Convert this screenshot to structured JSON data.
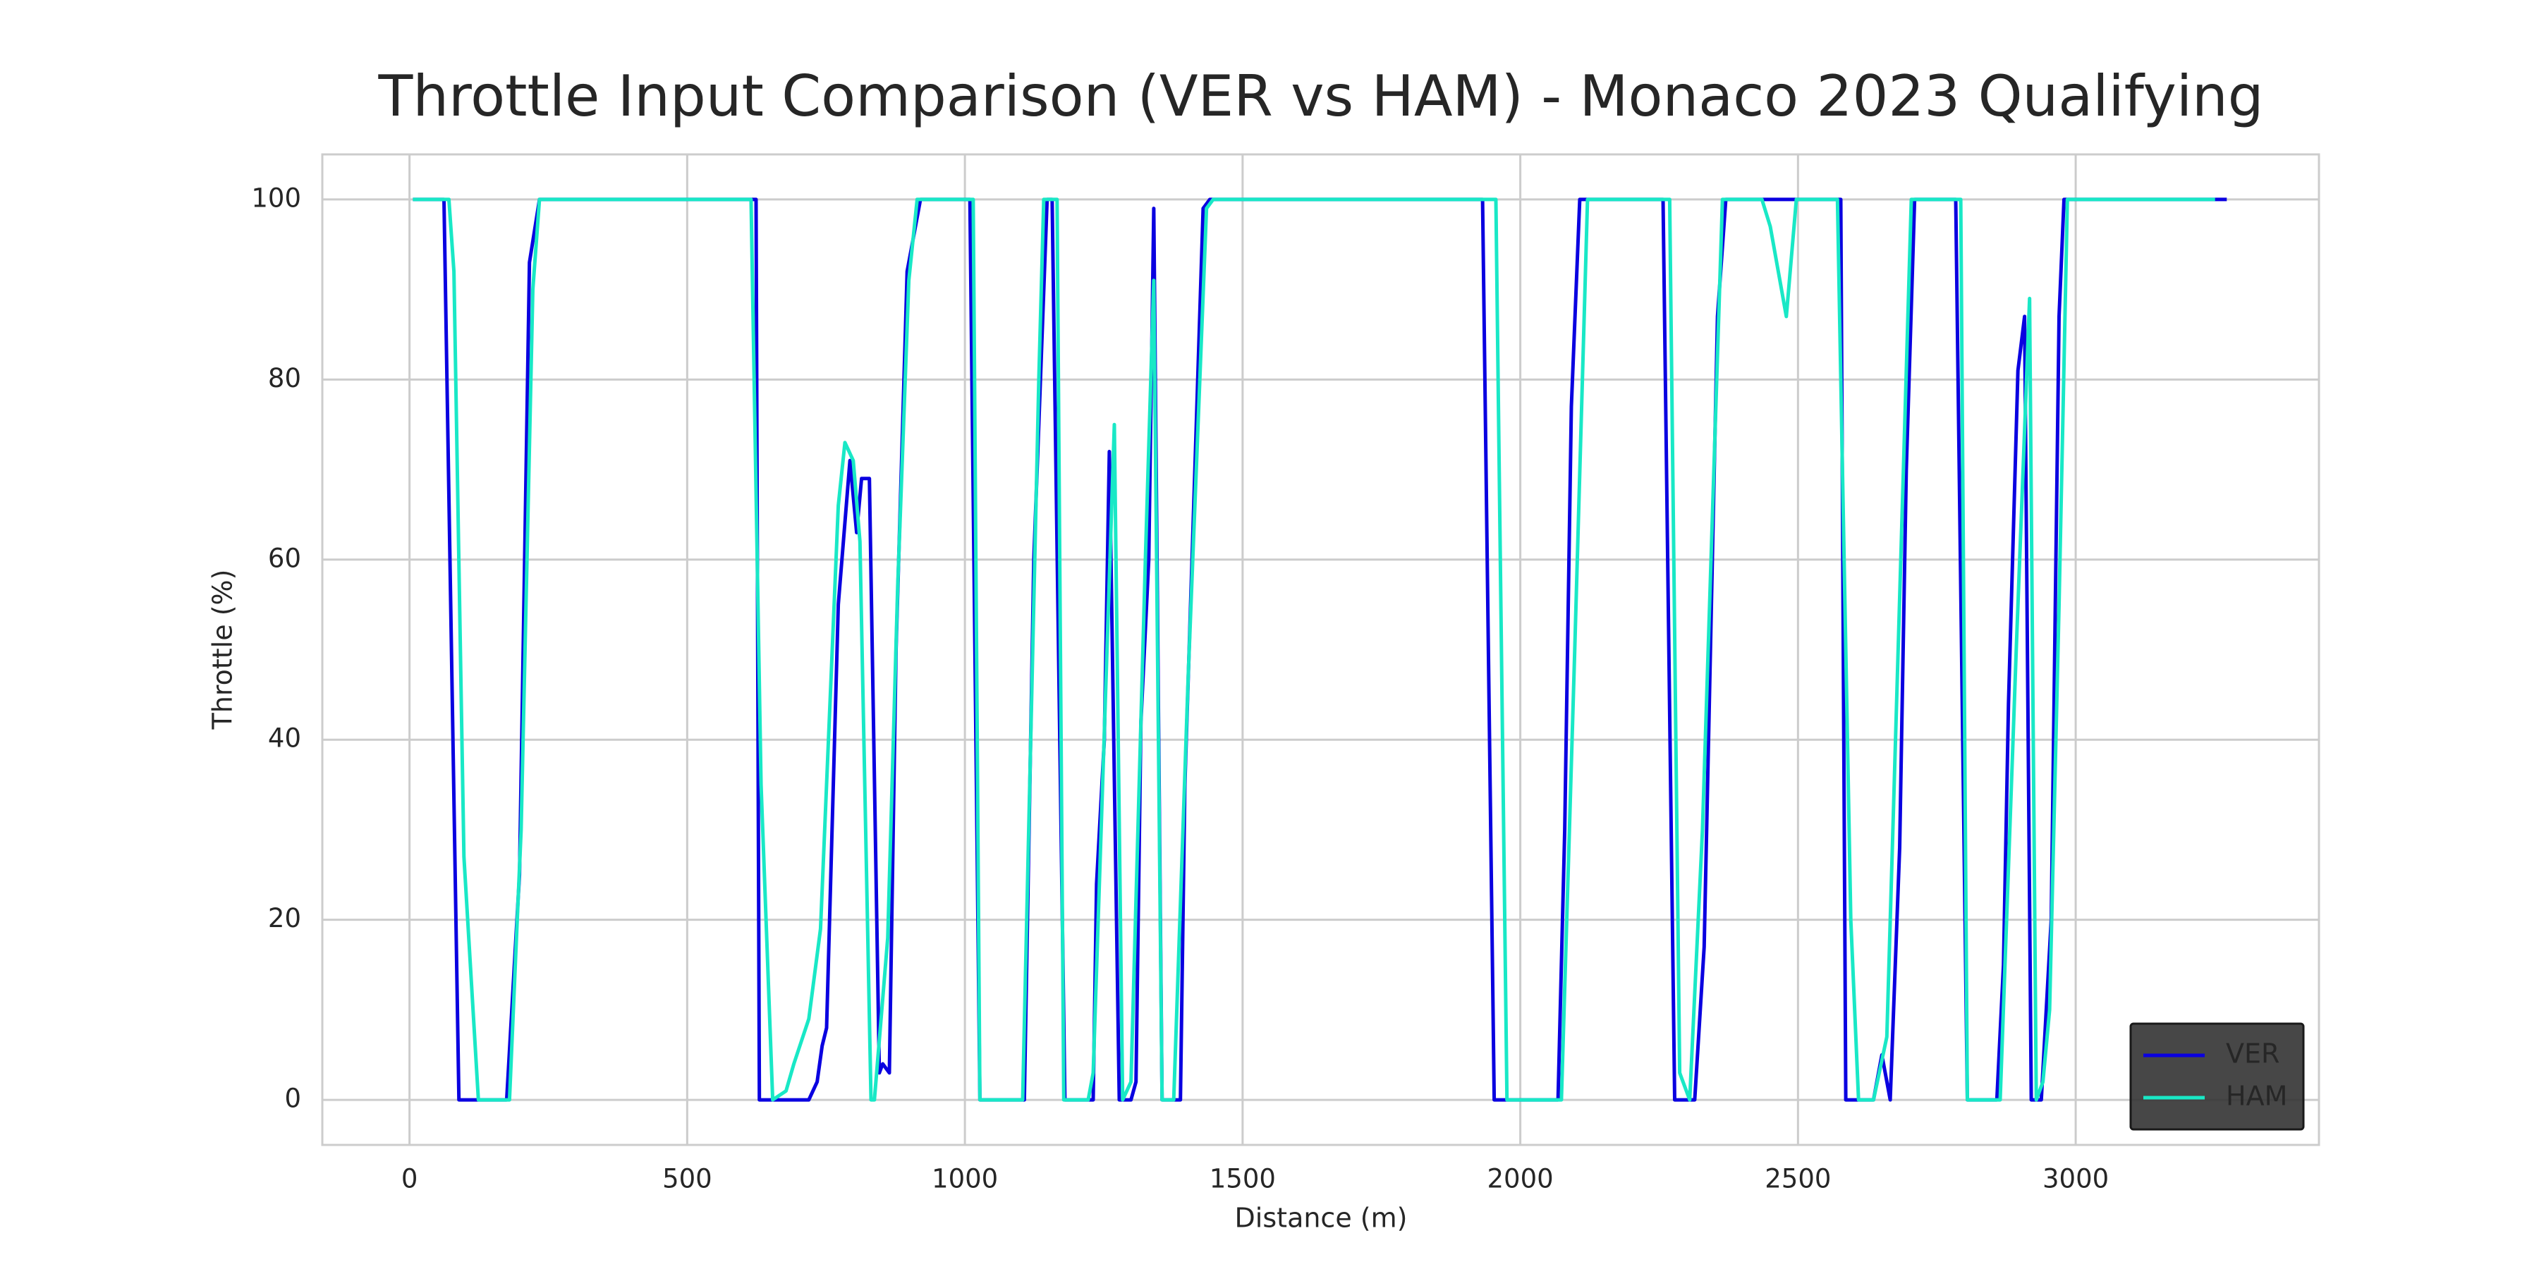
{
  "chart_data": {
    "type": "line",
    "title": "Throttle Input Comparison (VER vs HAM) - Monaco 2023 Qualifying",
    "xlabel": "Distance (m)",
    "ylabel": "Throttle (%)",
    "xlim": [
      -157,
      3438
    ],
    "ylim": [
      -5,
      105
    ],
    "xticks": [
      0,
      500,
      1000,
      1500,
      2000,
      2500,
      3000
    ],
    "yticks": [
      0,
      20,
      40,
      60,
      80,
      100
    ],
    "grid": true,
    "legend": "lower right",
    "series": [
      {
        "name": "VER",
        "color": "#0a00e0",
        "x": [
          6,
          62,
          89,
          175,
          198,
          216,
          234,
          624,
          630,
          648,
          719,
          734,
          743,
          751,
          772,
          793,
          805,
          814,
          828,
          846,
          852,
          864,
          876,
          896,
          920,
          1009,
          1027,
          1107,
          1124,
          1148,
          1157,
          1180,
          1231,
          1237,
          1251,
          1260,
          1278,
          1299,
          1308,
          1317,
          1331,
          1340,
          1355,
          1388,
          1396,
          1429,
          1441,
          1932,
          1953,
          2068,
          2080,
          2092,
          2107,
          2257,
          2278,
          2314,
          2331,
          2355,
          2370,
          2577,
          2586,
          2636,
          2651,
          2666,
          2683,
          2695,
          2710,
          2784,
          2805,
          2858,
          2870,
          2879,
          2896,
          2908,
          2920,
          2938,
          2956,
          2970,
          2979,
          3272
        ],
        "values": [
          100,
          100,
          0,
          0,
          25,
          93,
          100,
          100,
          0,
          0,
          0,
          2,
          6,
          8,
          55,
          71,
          63,
          69,
          69,
          3,
          4,
          3,
          50,
          92,
          100,
          100,
          0,
          0,
          60,
          100,
          100,
          0,
          0,
          24,
          40,
          72,
          0,
          0,
          2,
          42,
          60,
          99,
          0,
          0,
          35,
          99,
          100,
          100,
          0,
          0,
          30,
          77,
          100,
          100,
          0,
          0,
          17,
          87,
          100,
          100,
          0,
          0,
          5,
          0,
          28,
          70,
          100,
          100,
          0,
          0,
          15,
          44,
          81,
          87,
          0,
          0,
          20,
          87,
          100,
          100
        ]
      },
      {
        "name": "HAM",
        "color": "#19e8c6",
        "x": [
          6,
          71,
          80,
          98,
          124,
          180,
          201,
          222,
          234,
          615,
          633,
          654,
          678,
          692,
          719,
          740,
          772,
          784,
          799,
          811,
          831,
          837,
          861,
          879,
          899,
          914,
          1015,
          1027,
          1104,
          1133,
          1142,
          1166,
          1178,
          1222,
          1231,
          1249,
          1269,
          1284,
          1299,
          1325,
          1340,
          1355,
          1376,
          1402,
          1435,
          1447,
          1956,
          1976,
          2074,
          2098,
          2121,
          2269,
          2287,
          2305,
          2328,
          2364,
          2435,
          2450,
          2479,
          2497,
          2571,
          2595,
          2609,
          2636,
          2660,
          2704,
          2793,
          2805,
          2864,
          2893,
          2917,
          2929,
          2941,
          2953,
          2970,
          2985,
          3251
        ],
        "values": [
          100,
          100,
          92,
          27,
          0,
          0,
          30,
          90,
          100,
          100,
          35,
          0,
          1,
          4,
          9,
          19,
          66,
          73,
          71,
          62,
          0,
          0,
          18,
          57,
          91,
          100,
          100,
          0,
          0,
          80,
          100,
          100,
          0,
          0,
          3,
          37,
          75,
          0,
          2,
          60,
          91,
          0,
          0,
          47,
          99,
          100,
          100,
          0,
          0,
          50,
          100,
          100,
          3,
          0,
          30,
          100,
          100,
          97,
          87,
          100,
          100,
          20,
          0,
          0,
          7,
          100,
          100,
          0,
          0,
          50,
          89,
          0,
          2,
          10,
          55,
          100,
          100
        ]
      }
    ]
  }
}
